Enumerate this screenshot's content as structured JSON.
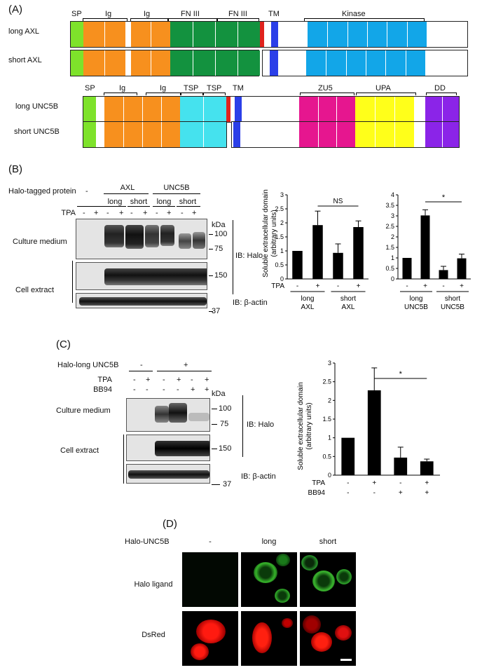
{
  "panelA": {
    "letter": "(A)",
    "axl_rows": [
      "long AXL",
      "short AXL"
    ],
    "axl_domains": [
      "SP",
      "Ig",
      "Ig",
      "FN III",
      "FN III",
      "TM",
      "Kinase"
    ],
    "unc_rows": [
      "long UNC5B",
      "short UNC5B"
    ],
    "unc_domains": [
      "SP",
      "Ig",
      "Ig",
      "TSP",
      "TSP",
      "TM",
      "ZU5",
      "UPA",
      "DD"
    ],
    "colors": {
      "SP": "#7ee22b",
      "Ig": "#f7901e",
      "FN III": "#13923f",
      "TM": "#2b3fe8",
      "juxta": "#e0221c",
      "Kinase": "#12a6e8",
      "TSP": "#45e2ee",
      "ZU5": "#e6168f",
      "UPA": "#ffff1a",
      "DD": "#8b24e8"
    }
  },
  "panelB": {
    "letter": "(B)",
    "protein_label": "Halo-tagged protein",
    "minus": "-",
    "plus": "+",
    "groups": [
      "AXL",
      "UNC5B"
    ],
    "subgroups": [
      "long",
      "short",
      "long",
      "short"
    ],
    "tpa": "TPA",
    "tpa_signs": [
      "-",
      "+",
      "-",
      "+",
      "-",
      "+",
      "-",
      "+",
      "-",
      "+"
    ],
    "kda": "kDa",
    "markers": [
      "100",
      "75",
      "150",
      "37"
    ],
    "blot_labels": [
      "Culture medium",
      "Cell extract"
    ],
    "ib_halo": "IB: Halo",
    "ib_actin": "IB: β-actin",
    "ylabel": "Soluble extracellular domain",
    "yunits": "(arbitrary units)",
    "sig_ns": "NS",
    "sig_star": "*",
    "xcat_axl": [
      "long",
      "AXL",
      "short",
      "AXL"
    ],
    "xcat_unc": [
      "long",
      "UNC5B",
      "short",
      "UNC5B"
    ]
  },
  "panelC": {
    "letter": "(C)",
    "protein_label": "Halo-long UNC5B",
    "rows": [
      "TPA",
      "BB94"
    ],
    "halo_signs": [
      "-",
      "+"
    ],
    "tpa_signs": [
      "-",
      "+",
      "-",
      "+",
      "-",
      "+"
    ],
    "bb94_signs": [
      "-",
      "-",
      "-",
      "-",
      "+",
      "+"
    ],
    "kda": "kDa",
    "markers": [
      "100",
      "75",
      "150",
      "37"
    ],
    "blot_labels": [
      "Culture medium",
      "Cell extract"
    ],
    "ib_halo": "IB: Halo",
    "ib_actin": "IB: β-actin",
    "ylabel": "Soluble extracellular domain",
    "yunits": "(arbitrary units)",
    "sig_star": "*",
    "bar_tpa": [
      "-",
      "+",
      "-",
      "+"
    ],
    "bar_bb94": [
      "-",
      "-",
      "+",
      "+"
    ]
  },
  "panelD": {
    "letter": "(D)",
    "protein_label": "Halo-UNC5B",
    "cols": [
      "-",
      "long",
      "short"
    ],
    "rows": [
      "Halo ligand",
      "DsRed"
    ]
  },
  "chart_data": [
    {
      "type": "bar",
      "categories": [
        "long AXL -",
        "long AXL +",
        "short AXL -",
        "short AXL +"
      ],
      "values": [
        1.0,
        1.92,
        0.93,
        1.85
      ],
      "errors": [
        0.0,
        0.5,
        0.32,
        0.22
      ],
      "ylim": [
        0,
        3
      ],
      "yticks": [
        "0",
        "0.5",
        "1",
        "1.5",
        "2",
        "2.5",
        "3"
      ],
      "significance": "NS",
      "grid": false
    },
    {
      "type": "bar",
      "categories": [
        "long UNC5B -",
        "long UNC5B +",
        "short UNC5B -",
        "short UNC5B +"
      ],
      "values": [
        1.0,
        3.02,
        0.42,
        0.98
      ],
      "errors": [
        0.0,
        0.27,
        0.18,
        0.2
      ],
      "ylim": [
        0,
        4
      ],
      "yticks": [
        "0",
        "0.5",
        "1",
        "1.5",
        "2",
        "2.5",
        "3",
        "3.5",
        "4"
      ],
      "significance": "*",
      "grid": false
    },
    {
      "type": "bar",
      "categories": [
        "TPA- BB94-",
        "TPA+ BB94-",
        "TPA- BB94+",
        "TPA+ BB94+"
      ],
      "values": [
        1.0,
        2.27,
        0.47,
        0.37
      ],
      "errors": [
        0.0,
        0.6,
        0.28,
        0.06
      ],
      "ylim": [
        0,
        3
      ],
      "yticks": [
        "0",
        "0.5",
        "1",
        "1.5",
        "2",
        "2.5",
        "3"
      ],
      "significance": "*",
      "grid": false
    }
  ]
}
